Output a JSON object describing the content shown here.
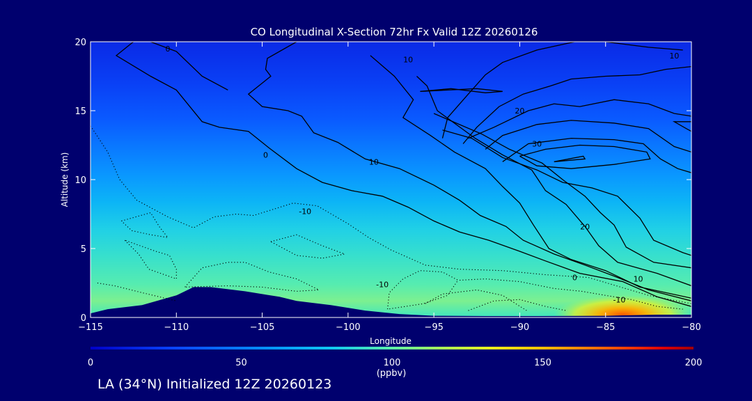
{
  "chart_data": {
    "type": "heatmap",
    "title": "CO Longitudinal X-Section 72hr  Fx Valid 12Z 20260126",
    "xlabel": "Longitude",
    "ylabel": "Altitude (km)",
    "xlim": [
      -115,
      -80
    ],
    "ylim": [
      0,
      20
    ],
    "x_ticks": [
      -115,
      -110,
      -105,
      -100,
      -95,
      -90,
      -85,
      -80
    ],
    "y_ticks": [
      0,
      5,
      10,
      15,
      20
    ],
    "x_tick_labels": [
      "−115",
      "−110",
      "−105",
      "−100",
      "−95",
      "−90",
      "−85",
      "−80"
    ],
    "y_tick_labels": [
      "0",
      "5",
      "10",
      "15",
      "20"
    ],
    "colorbar": {
      "min": 0,
      "max": 200,
      "ticks": [
        0,
        50,
        100,
        150,
        200
      ],
      "tick_labels": [
        "0",
        "50",
        "100",
        "150",
        "200"
      ],
      "unit": "(ppbv)",
      "placement": "bottom"
    },
    "field": {
      "quantity": "CO",
      "profile_altitude_km": [
        0,
        2,
        4,
        6,
        8,
        10,
        12,
        14,
        16,
        18,
        20
      ],
      "profile_value_ppbv": [
        95,
        88,
        80,
        75,
        70,
        64,
        55,
        46,
        40,
        34,
        30
      ],
      "plume": {
        "lon": [
          -88,
          -80
        ],
        "alt_km": [
          0,
          1
        ],
        "peak_ppbv": 180
      }
    },
    "terrain": {
      "lon": [
        -115,
        -114,
        -112,
        -110,
        -109,
        -108,
        -106,
        -104,
        -103,
        -101,
        -99,
        -97,
        -95,
        -92,
        -89,
        -85,
        -82,
        -80
      ],
      "alt_km": [
        0.3,
        0.6,
        0.9,
        1.6,
        2.2,
        2.2,
        1.9,
        1.5,
        1.2,
        0.9,
        0.5,
        0.25,
        0.12,
        0.1,
        0.1,
        0.12,
        0.2,
        0.2
      ]
    },
    "contour_labels": [
      {
        "text": "0",
        "lon": -110.5,
        "alt": 19.5
      },
      {
        "text": "10",
        "lon": -96.5,
        "alt": 18.7
      },
      {
        "text": "10",
        "lon": -81.0,
        "alt": 19.0
      },
      {
        "text": "20",
        "lon": -90.0,
        "alt": 15.0
      },
      {
        "text": "30",
        "lon": -89.0,
        "alt": 12.6
      },
      {
        "text": "0",
        "lon": -104.8,
        "alt": 11.8
      },
      {
        "text": "10",
        "lon": -98.5,
        "alt": 11.3
      },
      {
        "text": "20",
        "lon": -86.2,
        "alt": 6.6
      },
      {
        "text": "-10",
        "lon": -102.5,
        "alt": 7.7
      },
      {
        "text": "0",
        "lon": -86.8,
        "alt": 2.9
      },
      {
        "text": "10",
        "lon": -83.1,
        "alt": 2.8
      },
      {
        "text": "-10",
        "lon": -98.0,
        "alt": 2.4
      },
      {
        "text": "-10",
        "lon": -84.2,
        "alt": 1.3
      }
    ],
    "solid_contours": [
      [
        [
          -112.5,
          20
        ],
        [
          -113.5,
          19
        ],
        [
          -111.5,
          17.5
        ],
        [
          -110.0,
          16.5
        ],
        [
          -108.5,
          14.2
        ],
        [
          -107.5,
          13.8
        ],
        [
          -105.8,
          13.5
        ],
        [
          -104.6,
          12.3
        ],
        [
          -103.0,
          10.8
        ],
        [
          -101.5,
          9.8
        ],
        [
          -99.8,
          9.2
        ],
        [
          -98.0,
          8.8
        ],
        [
          -96.5,
          8.0
        ],
        [
          -95.0,
          7.0
        ],
        [
          -93.5,
          6.2
        ],
        [
          -91.8,
          5.6
        ],
        [
          -90.0,
          4.8
        ],
        [
          -88.5,
          4.1
        ],
        [
          -86.5,
          3.2
        ],
        [
          -84.0,
          2.6
        ],
        [
          -82.0,
          1.5
        ],
        [
          -80.0,
          0.8
        ]
      ],
      [
        [
          -111.5,
          20
        ],
        [
          -110.0,
          19.3
        ],
        [
          -108.5,
          17.5
        ],
        [
          -107.0,
          16.5
        ]
      ],
      [
        [
          -103.0,
          20
        ],
        [
          -104.7,
          18.8
        ],
        [
          -104.8,
          18.0
        ],
        [
          -104.5,
          17.5
        ],
        [
          -105.8,
          16.2
        ],
        [
          -105.0,
          15.3
        ],
        [
          -103.5,
          15.0
        ],
        [
          -102.7,
          14.6
        ],
        [
          -102.0,
          13.4
        ],
        [
          -100.6,
          12.7
        ],
        [
          -99.0,
          11.5
        ],
        [
          -97.0,
          10.8
        ],
        [
          -95.0,
          9.6
        ],
        [
          -93.5,
          8.5
        ],
        [
          -92.3,
          7.4
        ],
        [
          -90.8,
          6.6
        ],
        [
          -89.8,
          5.6
        ],
        [
          -88.0,
          4.6
        ],
        [
          -86.2,
          3.8
        ],
        [
          -84.5,
          3.0
        ],
        [
          -82.5,
          2.0
        ],
        [
          -80.0,
          1.2
        ]
      ],
      [
        [
          -98.7,
          19.0
        ],
        [
          -97.3,
          17.5
        ],
        [
          -96.2,
          15.8
        ],
        [
          -96.8,
          14.5
        ],
        [
          -95.2,
          13.2
        ],
        [
          -93.8,
          12.0
        ],
        [
          -92.0,
          10.8
        ],
        [
          -91.0,
          9.5
        ],
        [
          -90.0,
          8.3
        ],
        [
          -89.2,
          6.7
        ],
        [
          -88.3,
          5.0
        ],
        [
          -87.0,
          4.2
        ],
        [
          -85.0,
          3.4
        ],
        [
          -83.0,
          2.2
        ],
        [
          -80.0,
          1.4
        ]
      ],
      [
        [
          -96.0,
          17.5
        ],
        [
          -95.4,
          16.8
        ],
        [
          -94.8,
          15.0
        ],
        [
          -92.6,
          13.0
        ],
        [
          -91.0,
          11.8
        ],
        [
          -89.3,
          10.7
        ],
        [
          -88.5,
          9.2
        ],
        [
          -87.3,
          8.2
        ],
        [
          -86.2,
          6.6
        ],
        [
          -85.4,
          5.2
        ],
        [
          -84.3,
          4.0
        ],
        [
          -82.0,
          3.2
        ],
        [
          -80.0,
          2.3
        ]
      ],
      [
        [
          -95.0,
          14.8
        ],
        [
          -92.2,
          13.3
        ],
        [
          -90.6,
          12.2
        ],
        [
          -88.7,
          11.2
        ],
        [
          -87.5,
          10.0
        ],
        [
          -86.2,
          8.8
        ],
        [
          -85.3,
          7.6
        ],
        [
          -84.5,
          6.7
        ],
        [
          -83.8,
          5.1
        ],
        [
          -82.2,
          4.0
        ],
        [
          -80.0,
          3.6
        ]
      ],
      [
        [
          -94.5,
          13.6
        ],
        [
          -92.8,
          13.0
        ],
        [
          -91.0,
          11.6
        ],
        [
          -89.0,
          10.7
        ],
        [
          -87.5,
          9.8
        ],
        [
          -85.8,
          9.4
        ],
        [
          -84.3,
          8.8
        ],
        [
          -83.0,
          7.2
        ],
        [
          -82.2,
          5.6
        ],
        [
          -80.5,
          4.7
        ],
        [
          -80.0,
          4.5
        ]
      ],
      [
        [
          -93.0,
          13.0
        ],
        [
          -91.5,
          13.8
        ],
        [
          -89.5,
          15.0
        ],
        [
          -88.0,
          15.5
        ],
        [
          -86.5,
          15.3
        ],
        [
          -84.5,
          15.8
        ],
        [
          -82.5,
          15.5
        ],
        [
          -81.0,
          14.8
        ],
        [
          -80.0,
          14.6
        ]
      ],
      [
        [
          -92.0,
          12.2
        ],
        [
          -91.0,
          13.2
        ],
        [
          -89.0,
          14.0
        ],
        [
          -87.0,
          14.3
        ],
        [
          -84.5,
          14.1
        ],
        [
          -82.5,
          13.7
        ],
        [
          -81.0,
          12.4
        ],
        [
          -80.0,
          12.0
        ]
      ],
      [
        [
          -91.0,
          11.3
        ],
        [
          -89.5,
          12.6
        ],
        [
          -87.0,
          13.0
        ],
        [
          -84.5,
          12.9
        ],
        [
          -82.8,
          12.6
        ],
        [
          -81.8,
          11.5
        ],
        [
          -80.8,
          10.8
        ],
        [
          -80.0,
          10.5
        ]
      ],
      [
        [
          -80.5,
          19.4
        ],
        [
          -82.5,
          19.6
        ],
        [
          -85.0,
          20.0
        ],
        [
          -86.8,
          20.0
        ],
        [
          -89.0,
          19.4
        ],
        [
          -91.0,
          18.5
        ],
        [
          -92.0,
          17.6
        ],
        [
          -93.0,
          16.2
        ],
        [
          -94.2,
          14.5
        ],
        [
          -94.5,
          13.0
        ]
      ],
      [
        [
          -80.0,
          18.2
        ],
        [
          -81.5,
          18.0
        ],
        [
          -83.0,
          17.6
        ],
        [
          -85.0,
          17.5
        ],
        [
          -87.0,
          17.3
        ],
        [
          -88.2,
          16.8
        ],
        [
          -89.8,
          16.2
        ],
        [
          -91.2,
          15.3
        ],
        [
          -92.5,
          13.8
        ],
        [
          -93.3,
          12.6
        ]
      ],
      [
        [
          -90.0,
          11.7
        ],
        [
          -88.5,
          12.2
        ],
        [
          -86.5,
          12.5
        ],
        [
          -84.5,
          12.4
        ],
        [
          -82.6,
          12.0
        ],
        [
          -82.4,
          11.5
        ],
        [
          -84.5,
          11.1
        ],
        [
          -87.0,
          10.8
        ],
        [
          -89.0,
          11.0
        ],
        [
          -90.0,
          11.7
        ]
      ],
      [
        [
          -88.0,
          11.3
        ],
        [
          -86.2,
          11.5
        ],
        [
          -86.3,
          11.7
        ],
        [
          -88.0,
          11.3
        ]
      ],
      [
        [
          -95.8,
          16.4
        ],
        [
          -94.0,
          16.6
        ],
        [
          -92.0,
          16.3
        ],
        [
          -91.0,
          16.4
        ],
        [
          -92.5,
          16.6
        ],
        [
          -95.8,
          16.4
        ]
      ],
      [
        [
          -80.0,
          14.2
        ],
        [
          -81.0,
          14.2
        ],
        [
          -80.3,
          13.7
        ],
        [
          -80.0,
          13.5
        ]
      ]
    ],
    "dotted_contours": [
      [
        [
          -115,
          13.9
        ],
        [
          -114.0,
          12.0
        ],
        [
          -113.3,
          10.0
        ],
        [
          -112.3,
          8.5
        ],
        [
          -110.5,
          7.3
        ],
        [
          -109.0,
          6.5
        ],
        [
          -107.8,
          7.3
        ],
        [
          -106.5,
          7.5
        ],
        [
          -105.5,
          7.4
        ],
        [
          -103.2,
          8.3
        ],
        [
          -101.8,
          8.1
        ],
        [
          -100.0,
          6.8
        ],
        [
          -98.8,
          5.8
        ],
        [
          -97.5,
          4.9
        ],
        [
          -95.5,
          3.8
        ],
        [
          -93.5,
          3.5
        ],
        [
          -91.0,
          3.4
        ],
        [
          -88.5,
          3.1
        ],
        [
          -86.0,
          2.9
        ],
        [
          -82.5,
          1.6
        ],
        [
          -80.0,
          1.0
        ]
      ],
      [
        [
          -113.2,
          7.0
        ],
        [
          -111.5,
          7.6
        ],
        [
          -111.0,
          6.6
        ],
        [
          -110.5,
          5.8
        ],
        [
          -111.5,
          6.0
        ],
        [
          -112.6,
          6.3
        ],
        [
          -113.2,
          7.0
        ]
      ],
      [
        [
          -113.0,
          5.6
        ],
        [
          -112.2,
          4.6
        ],
        [
          -111.6,
          3.5
        ],
        [
          -110.0,
          2.8
        ],
        [
          -110.0,
          3.5
        ],
        [
          -110.4,
          4.5
        ],
        [
          -111.2,
          4.8
        ],
        [
          -113.0,
          5.6
        ]
      ],
      [
        [
          -109.5,
          2.2
        ],
        [
          -108.5,
          3.6
        ],
        [
          -107.0,
          4.0
        ],
        [
          -106.0,
          4.0
        ],
        [
          -104.6,
          3.3
        ],
        [
          -103.0,
          2.8
        ],
        [
          -101.7,
          2.0
        ],
        [
          -103.0,
          1.9
        ],
        [
          -105.0,
          2.2
        ],
        [
          -107.0,
          2.3
        ],
        [
          -109.5,
          2.2
        ]
      ],
      [
        [
          -104.5,
          5.5
        ],
        [
          -103.0,
          6.0
        ],
        [
          -101.5,
          5.2
        ],
        [
          -100.2,
          4.6
        ],
        [
          -101.5,
          4.3
        ],
        [
          -103.0,
          4.5
        ],
        [
          -104.5,
          5.5
        ]
      ],
      [
        [
          -97.7,
          0.6
        ],
        [
          -97.6,
          1.8
        ],
        [
          -96.8,
          2.8
        ],
        [
          -95.8,
          3.4
        ],
        [
          -94.5,
          3.3
        ],
        [
          -93.6,
          2.7
        ],
        [
          -94.2,
          1.6
        ],
        [
          -95.6,
          1.0
        ],
        [
          -97.7,
          0.6
        ]
      ],
      [
        [
          -95.5,
          1.0
        ],
        [
          -94.5,
          1.7
        ],
        [
          -92.5,
          2.0
        ],
        [
          -91.0,
          1.6
        ],
        [
          -89.6,
          0.5
        ]
      ],
      [
        [
          -93.5,
          2.7
        ],
        [
          -92.0,
          2.8
        ],
        [
          -90.0,
          2.6
        ],
        [
          -88.0,
          2.1
        ],
        [
          -86.4,
          1.9
        ],
        [
          -85.0,
          1.6
        ],
        [
          -83.5,
          1.3
        ],
        [
          -82.0,
          0.8
        ],
        [
          -80.5,
          0.6
        ]
      ],
      [
        [
          -93.0,
          0.5
        ],
        [
          -91.5,
          1.2
        ],
        [
          -90.0,
          1.3
        ],
        [
          -88.5,
          0.8
        ],
        [
          -87.3,
          0.5
        ]
      ],
      [
        [
          -114.6,
          2.5
        ],
        [
          -113.6,
          2.3
        ],
        [
          -112.0,
          1.8
        ],
        [
          -110.0,
          1.2
        ]
      ]
    ]
  },
  "caption": "LA (34°N) Initialized 12Z 20260123",
  "colors": {
    "background": "#00006e",
    "terrain": "#00006e",
    "contour": "#000000",
    "text": "#ffffff"
  }
}
